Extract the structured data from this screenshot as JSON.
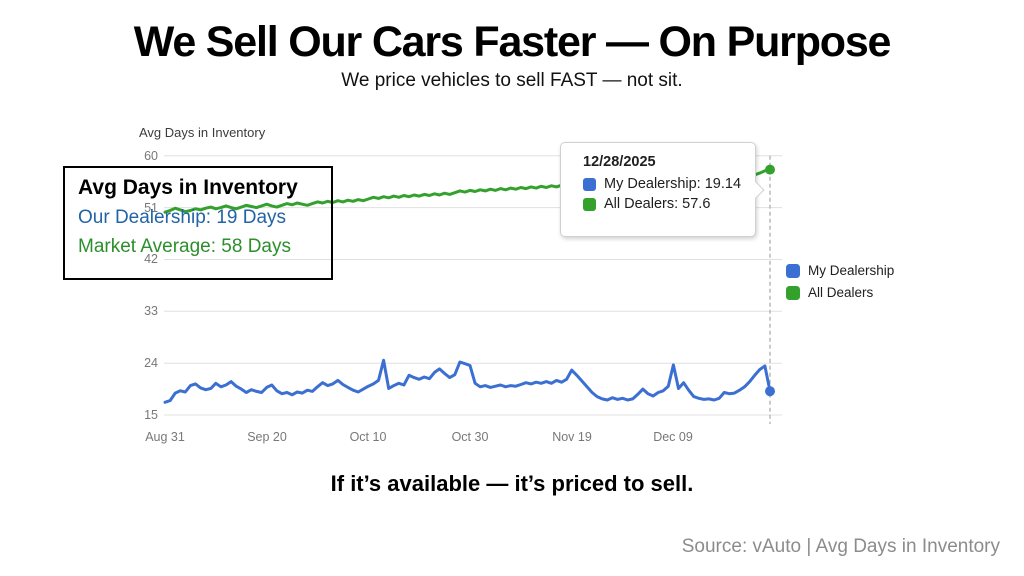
{
  "page": {
    "title": "We Sell Our Cars Faster — On Purpose",
    "subtitle": "We price vehicles to sell FAST — not sit.",
    "tagline": "If it’s available — it’s priced to sell.",
    "source": "Source: vAuto | Avg Days in Inventory"
  },
  "overlay_box": {
    "title": "Avg Days in Inventory",
    "our_dealership": "Our Dealership: 19 Days",
    "market_average": "Market Average: 58 Days"
  },
  "tooltip": {
    "date": "12/28/2025",
    "rows": [
      {
        "label": "My Dealership: 19.14",
        "color": "#3b6fd1"
      },
      {
        "label": "All Dealers: 57.6",
        "color": "#34a12d"
      }
    ]
  },
  "legend": [
    {
      "label": "My Dealership",
      "color": "#3b6fd1"
    },
    {
      "label": "All Dealers",
      "color": "#34a12d"
    }
  ],
  "colors": {
    "blue_series": "#3b6fd1",
    "green_series": "#34a12d",
    "gridline": "#e0e0e0",
    "axis_text": "#787878",
    "dashed_crosshair": "#adadad",
    "overlay_blue_text": "#2264a5",
    "overlay_green_text": "#2c8f2c"
  },
  "chart_data": {
    "type": "line",
    "title": "Avg Days in Inventory",
    "xlabel": "",
    "ylabel": "",
    "ylim": [
      15,
      60
    ],
    "y_ticks": [
      15,
      24,
      33,
      42,
      51,
      60
    ],
    "x_tick_labels": [
      "Aug 31",
      "Sep 20",
      "Oct 10",
      "Oct 30",
      "Nov 19",
      "Dec 09"
    ],
    "x_tick_days": [
      0,
      20,
      40,
      60,
      80,
      100
    ],
    "grid": true,
    "legend_position": "right",
    "hover_day": 119,
    "hover_date": "12/28/2025",
    "series": [
      {
        "name": "My Dealership",
        "color": "#3b6fd1",
        "final_value": 19.14,
        "values": [
          17.2,
          17.5,
          18.8,
          19.2,
          19.0,
          20.1,
          20.4,
          19.7,
          19.4,
          19.6,
          20.5,
          19.9,
          20.2,
          20.8,
          20.0,
          19.5,
          18.9,
          19.4,
          19.1,
          18.9,
          19.8,
          20.2,
          19.2,
          18.7,
          18.9,
          18.5,
          19.0,
          18.8,
          19.3,
          19.1,
          19.9,
          20.6,
          20.1,
          20.4,
          21.0,
          20.3,
          19.8,
          19.3,
          19.0,
          19.5,
          20.0,
          20.4,
          21.0,
          24.5,
          19.6,
          20.1,
          20.5,
          20.2,
          21.9,
          21.5,
          21.2,
          21.6,
          21.3,
          22.4,
          23.0,
          22.2,
          21.5,
          22.0,
          24.2,
          23.9,
          23.6,
          20.5,
          19.9,
          20.1,
          19.8,
          20.0,
          20.2,
          19.9,
          20.1,
          20.0,
          20.3,
          20.6,
          20.4,
          20.7,
          20.5,
          20.8,
          20.5,
          21.0,
          20.7,
          21.2,
          22.8,
          21.9,
          20.9,
          19.9,
          18.9,
          18.2,
          17.8,
          17.6,
          18.0,
          17.7,
          17.9,
          17.6,
          17.8,
          18.6,
          19.5,
          18.7,
          18.3,
          18.9,
          19.2,
          20.0,
          23.7,
          19.6,
          20.6,
          19.3,
          18.2,
          17.9,
          17.7,
          17.8,
          17.6,
          17.9,
          18.9,
          18.7,
          18.8,
          19.3,
          19.9,
          20.8,
          21.9,
          22.9,
          23.5,
          19.14
        ]
      },
      {
        "name": "All Dealers",
        "color": "#34a12d",
        "final_value": 57.6,
        "values": [
          50.2,
          50.5,
          50.9,
          50.6,
          50.3,
          50.5,
          50.8,
          50.6,
          50.9,
          51.1,
          50.8,
          51.0,
          51.3,
          51.0,
          50.8,
          51.1,
          51.4,
          51.2,
          51.0,
          51.3,
          51.6,
          51.3,
          51.1,
          51.4,
          51.7,
          51.5,
          51.8,
          51.6,
          51.4,
          51.7,
          52.0,
          51.8,
          52.1,
          51.9,
          52.2,
          52.0,
          52.3,
          52.1,
          52.4,
          52.2,
          52.5,
          52.8,
          52.6,
          52.9,
          52.7,
          53.0,
          52.8,
          53.1,
          52.9,
          53.2,
          53.0,
          53.3,
          53.1,
          53.4,
          53.2,
          53.5,
          53.3,
          53.6,
          53.9,
          53.7,
          54.0,
          53.8,
          54.1,
          53.9,
          54.2,
          54.0,
          54.3,
          54.1,
          54.4,
          54.2,
          54.5,
          54.3,
          54.6,
          54.4,
          54.7,
          54.5,
          54.8,
          54.6,
          54.9,
          55.1,
          54.9,
          55.2,
          55.0,
          55.3,
          55.1,
          55.4,
          55.2,
          55.5,
          55.3,
          55.6,
          55.4,
          55.7,
          55.5,
          55.8,
          55.6,
          55.9,
          55.7,
          56.0,
          55.8,
          56.1,
          55.9,
          56.2,
          56.0,
          56.3,
          56.1,
          56.4,
          56.2,
          56.5,
          56.3,
          56.6,
          56.4,
          56.7,
          56.5,
          56.8,
          56.6,
          56.9,
          56.7,
          57.0,
          57.4,
          57.6
        ]
      }
    ]
  }
}
